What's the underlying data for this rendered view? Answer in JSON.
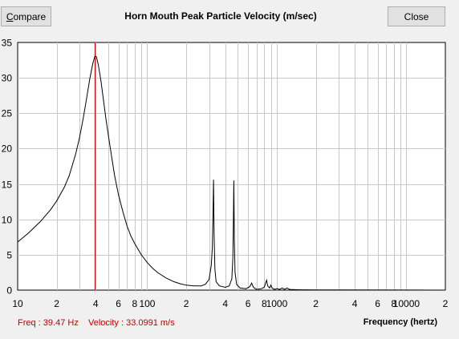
{
  "toolbar": {
    "compare_label_accel": "C",
    "compare_label_rest": "ompare",
    "close_label": "Close"
  },
  "readout": {
    "freq_text": "Freq : 39.47 Hz",
    "velocity_text": "Velocity : 33.0991 m/s"
  },
  "colors": {
    "plot_background": "#ffffff",
    "grid": "#c8c8c8",
    "curve": "#000000",
    "cursor": "#cc0000",
    "readout": "#c00000"
  },
  "chart_data": {
    "type": "line",
    "title": "Horn Mouth Peak Particle Velocity (m/sec)",
    "xlabel": "Frequency (hertz)",
    "ylabel": "",
    "x_scale": "log",
    "xlim": [
      10,
      20000
    ],
    "ylim": [
      0,
      35
    ],
    "grid": true,
    "y_ticks": [
      0,
      5,
      10,
      15,
      20,
      25,
      30,
      35
    ],
    "x_ticks": [
      {
        "value": 10,
        "label": "10"
      },
      {
        "value": 20,
        "label": "2"
      },
      {
        "value": 40,
        "label": "4"
      },
      {
        "value": 60,
        "label": "6"
      },
      {
        "value": 80,
        "label": "8"
      },
      {
        "value": 100,
        "label": "100"
      },
      {
        "value": 200,
        "label": "2"
      },
      {
        "value": 400,
        "label": "4"
      },
      {
        "value": 600,
        "label": "6"
      },
      {
        "value": 800,
        "label": "8"
      },
      {
        "value": 1000,
        "label": "1000"
      },
      {
        "value": 2000,
        "label": "2"
      },
      {
        "value": 4000,
        "label": "4"
      },
      {
        "value": 6000,
        "label": "6"
      },
      {
        "value": 8000,
        "label": "8"
      },
      {
        "value": 10000,
        "label": "10000"
      },
      {
        "value": 20000,
        "label": "2"
      }
    ],
    "cursor_x": 39.47,
    "series": [
      {
        "points": [
          [
            10,
            6.8
          ],
          [
            12,
            8.0
          ],
          [
            15,
            9.7
          ],
          [
            18,
            11.4
          ],
          [
            20,
            12.6
          ],
          [
            23,
            14.6
          ],
          [
            25,
            16.2
          ],
          [
            28,
            19.2
          ],
          [
            30,
            21.5
          ],
          [
            32,
            24.2
          ],
          [
            34,
            27.0
          ],
          [
            36,
            29.8
          ],
          [
            38,
            32.0
          ],
          [
            39.5,
            33.1
          ],
          [
            40.5,
            33.0
          ],
          [
            42,
            31.8
          ],
          [
            44,
            29.5
          ],
          [
            46,
            26.8
          ],
          [
            48,
            24.2
          ],
          [
            50,
            22.0
          ],
          [
            53,
            19.0
          ],
          [
            56,
            16.2
          ],
          [
            60,
            13.5
          ],
          [
            65,
            11.0
          ],
          [
            70,
            9.0
          ],
          [
            75,
            7.6
          ],
          [
            80,
            6.6
          ],
          [
            90,
            5.0
          ],
          [
            100,
            3.9
          ],
          [
            110,
            3.1
          ],
          [
            120,
            2.5
          ],
          [
            140,
            1.7
          ],
          [
            160,
            1.2
          ],
          [
            180,
            0.9
          ],
          [
            200,
            0.7
          ],
          [
            230,
            0.6
          ],
          [
            260,
            0.6
          ],
          [
            280,
            0.8
          ],
          [
            300,
            1.5
          ],
          [
            312,
            3.5
          ],
          [
            318,
            6.0
          ],
          [
            322,
            11.2
          ],
          [
            325,
            15.6
          ],
          [
            328,
            8.0
          ],
          [
            333,
            3.0
          ],
          [
            340,
            1.2
          ],
          [
            360,
            0.6
          ],
          [
            400,
            0.4
          ],
          [
            430,
            0.6
          ],
          [
            450,
            1.6
          ],
          [
            458,
            4.5
          ],
          [
            462,
            9.3
          ],
          [
            466,
            15.5
          ],
          [
            470,
            7.5
          ],
          [
            476,
            2.5
          ],
          [
            490,
            0.8
          ],
          [
            520,
            0.3
          ],
          [
            580,
            0.2
          ],
          [
            620,
            0.5
          ],
          [
            640,
            1.0
          ],
          [
            660,
            0.4
          ],
          [
            700,
            0.1
          ],
          [
            760,
            0.2
          ],
          [
            800,
            0.4
          ],
          [
            820,
            1.0
          ],
          [
            835,
            1.4
          ],
          [
            850,
            0.6
          ],
          [
            880,
            0.3
          ],
          [
            900,
            0.7
          ],
          [
            920,
            0.3
          ],
          [
            960,
            0.1
          ],
          [
            1000,
            0.2
          ],
          [
            1050,
            0.1
          ],
          [
            1100,
            0.3
          ],
          [
            1150,
            0.1
          ],
          [
            1200,
            0.3
          ],
          [
            1260,
            0.1
          ],
          [
            1500,
            0.05
          ],
          [
            2000,
            0.03
          ],
          [
            3000,
            0.02
          ],
          [
            20000,
            0
          ]
        ]
      }
    ]
  }
}
